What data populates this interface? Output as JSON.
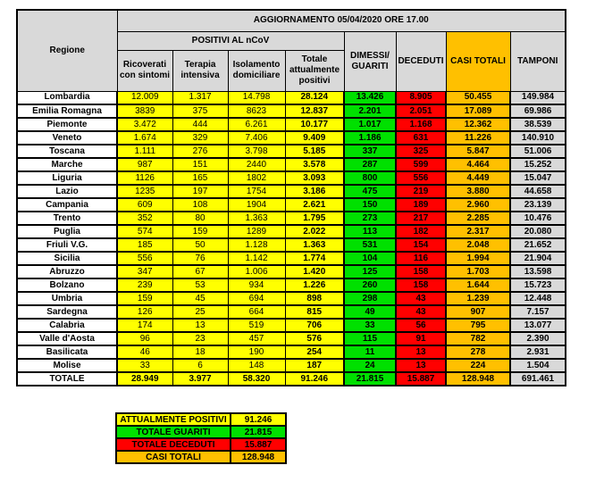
{
  "title": "AGGIORNAMENTO 05/04/2020 ORE 17.00",
  "table": {
    "region_header": "Regione",
    "group_header": "POSITIVI AL nCoV",
    "sub_headers": [
      "Ricoverati con sintomi",
      "Terapia intensiva",
      "Isolamento domiciliare",
      "Totale attualmente positivi"
    ],
    "stat_headers": [
      "DIMESSI/ GUARITI",
      "DECEDUTI",
      "CASI TOTALI",
      "TAMPONI"
    ],
    "column_keys": [
      "ricoverati-con-sintomi",
      "terapia-intensiva",
      "isolamento-domiciliare",
      "totale-attualmente-positivi",
      "dimessi-guariti",
      "deceduti",
      "casi-totali",
      "tamponi"
    ],
    "rows": [
      [
        "Lombardia",
        "12.009",
        "1.317",
        "14.798",
        "28.124",
        "13.426",
        "8.905",
        "50.455",
        "149.984"
      ],
      [
        "Emilia Romagna",
        "3839",
        "375",
        "8623",
        "12.837",
        "2.201",
        "2.051",
        "17.089",
        "69.986"
      ],
      [
        "Piemonte",
        "3.472",
        "444",
        "6.261",
        "10.177",
        "1.017",
        "1.168",
        "12.362",
        "38.539"
      ],
      [
        "Veneto",
        "1.674",
        "329",
        "7.406",
        "9.409",
        "1.186",
        "631",
        "11.226",
        "140.910"
      ],
      [
        "Toscana",
        "1.111",
        "276",
        "3.798",
        "5.185",
        "337",
        "325",
        "5.847",
        "51.006"
      ],
      [
        "Marche",
        "987",
        "151",
        "2440",
        "3.578",
        "287",
        "599",
        "4.464",
        "15.252"
      ],
      [
        "Liguria",
        "1126",
        "165",
        "1802",
        "3.093",
        "800",
        "556",
        "4.449",
        "15.047"
      ],
      [
        "Lazio",
        "1235",
        "197",
        "1754",
        "3.186",
        "475",
        "219",
        "3.880",
        "44.658"
      ],
      [
        "Campania",
        "609",
        "108",
        "1904",
        "2.621",
        "150",
        "189",
        "2.960",
        "23.139"
      ],
      [
        "Trento",
        "352",
        "80",
        "1.363",
        "1.795",
        "273",
        "217",
        "2.285",
        "10.476"
      ],
      [
        "Puglia",
        "574",
        "159",
        "1289",
        "2.022",
        "113",
        "182",
        "2.317",
        "20.080"
      ],
      [
        "Friuli V.G.",
        "185",
        "50",
        "1.128",
        "1.363",
        "531",
        "154",
        "2.048",
        "21.652"
      ],
      [
        "Sicilia",
        "556",
        "76",
        "1.142",
        "1.774",
        "104",
        "116",
        "1.994",
        "21.904"
      ],
      [
        "Abruzzo",
        "347",
        "67",
        "1.006",
        "1.420",
        "125",
        "158",
        "1.703",
        "13.598"
      ],
      [
        "Bolzano",
        "239",
        "53",
        "934",
        "1.226",
        "260",
        "158",
        "1.644",
        "15.723"
      ],
      [
        "Umbria",
        "159",
        "45",
        "694",
        "898",
        "298",
        "43",
        "1.239",
        "12.448"
      ],
      [
        "Sardegna",
        "126",
        "25",
        "664",
        "815",
        "49",
        "43",
        "907",
        "7.157"
      ],
      [
        "Calabria",
        "174",
        "13",
        "519",
        "706",
        "33",
        "56",
        "795",
        "13.077"
      ],
      [
        "Valle d'Aosta",
        "96",
        "23",
        "457",
        "576",
        "115",
        "91",
        "782",
        "2.390"
      ],
      [
        "Basilicata",
        "46",
        "18",
        "190",
        "254",
        "11",
        "13",
        "278",
        "2.931"
      ],
      [
        "Molise",
        "33",
        "6",
        "148",
        "187",
        "24",
        "13",
        "224",
        "1.504"
      ]
    ],
    "total_row": [
      "TOTALE",
      "28.949",
      "3.977",
      "58.320",
      "91.246",
      "21.815",
      "15.887",
      "128.948",
      "691.461"
    ]
  },
  "legend": {
    "items": [
      {
        "label": "ATTUALMENTE POSITIVI",
        "value": "91.246",
        "color_key": "yellow"
      },
      {
        "label": "TOTALE GUARITI",
        "value": "21.815",
        "color_key": "green"
      },
      {
        "label": "TOTALE DECEDUTI",
        "value": "15.887",
        "color_key": "red"
      },
      {
        "label": "CASI TOTALI",
        "value": "128.948",
        "color_key": "orange"
      }
    ]
  },
  "colors": {
    "yellow": "#FFFF00",
    "green": "#00E000",
    "red": "#FF0000",
    "orange": "#FFC000",
    "header_grey": "#D9D9D9",
    "tamponi_grey": "#D9D9D9",
    "white": "#FFFFFF"
  }
}
